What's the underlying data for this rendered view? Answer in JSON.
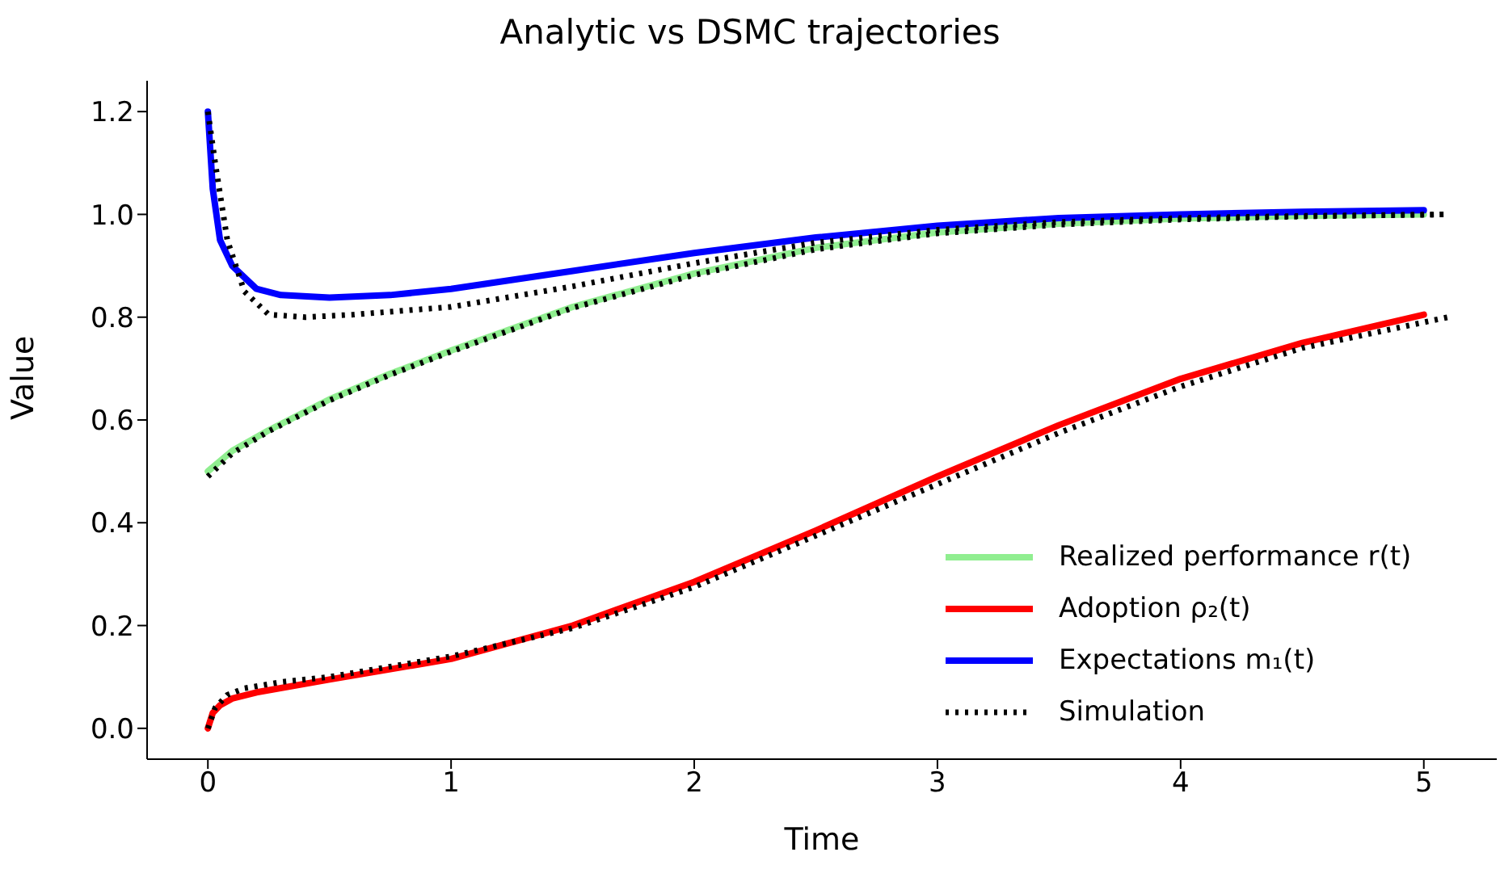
{
  "chart_data": {
    "type": "line",
    "title": "Analytic vs DSMC trajectories",
    "xlabel": "Time",
    "ylabel": "Value",
    "xlim": [
      -0.25,
      5.3
    ],
    "xticks": [
      0,
      1,
      2,
      3,
      4,
      5
    ],
    "ylim": [
      -0.06,
      1.26
    ],
    "yticks": [
      {
        "value": 0,
        "label": "0.0"
      },
      {
        "value": 0.2,
        "label": "0.2"
      },
      {
        "value": 0.4,
        "label": "0.4"
      },
      {
        "value": 0.6,
        "label": "0.6"
      },
      {
        "value": 0.8,
        "label": "0.8"
      },
      {
        "value": 1,
        "label": "1.0"
      },
      {
        "value": 1.2,
        "label": "1.2"
      }
    ],
    "grid": false,
    "legend": "bottom right",
    "marker": "none",
    "series": [
      {
        "name": "Realized performance r(t)",
        "color": "#90ee90",
        "line_style": "solid",
        "x": [
          0,
          0.1,
          0.25,
          0.5,
          0.75,
          1,
          1.5,
          2,
          2.5,
          3,
          3.5,
          4,
          4.5,
          5
        ],
        "values": [
          0.5,
          0.54,
          0.58,
          0.64,
          0.69,
          0.735,
          0.82,
          0.885,
          0.935,
          0.965,
          0.982,
          0.992,
          0.997,
          1.0
        ]
      },
      {
        "name": "Adoption ρ₂(t)",
        "color": "#ff0000",
        "line_style": "solid",
        "x": [
          0,
          0.02,
          0.05,
          0.1,
          0.2,
          0.5,
          1,
          1.5,
          2,
          2.5,
          3,
          3.5,
          4,
          4.5,
          5
        ],
        "values": [
          0,
          0.03,
          0.045,
          0.058,
          0.07,
          0.095,
          0.135,
          0.2,
          0.285,
          0.385,
          0.49,
          0.59,
          0.68,
          0.75,
          0.805
        ]
      },
      {
        "name": "Expectations m₁(t)",
        "color": "#0000ff",
        "line_style": "solid",
        "x": [
          0,
          0.02,
          0.05,
          0.1,
          0.2,
          0.3,
          0.5,
          0.75,
          1,
          1.5,
          2,
          2.5,
          3,
          3.5,
          4,
          4.5,
          5
        ],
        "values": [
          1.2,
          1.05,
          0.95,
          0.9,
          0.855,
          0.843,
          0.838,
          0.843,
          0.855,
          0.89,
          0.925,
          0.955,
          0.978,
          0.993,
          1.0,
          1.005,
          1.008
        ]
      },
      {
        "name": "Simulation",
        "color": "#000000",
        "line_style": "dotted",
        "x": [
          0,
          0.03,
          0.08,
          0.15,
          0.25,
          0.4,
          0.6,
          1,
          1.5,
          2,
          2.5,
          3,
          3.5,
          4,
          4.5,
          5.1
        ],
        "values": [
          1.2,
          1.1,
          0.95,
          0.85,
          0.805,
          0.8,
          0.805,
          0.82,
          0.86,
          0.905,
          0.945,
          0.97,
          0.985,
          0.993,
          0.997,
          1.0
        ]
      },
      {
        "color": "#000000",
        "line_style": "dotted",
        "x": [
          0,
          0.1,
          0.25,
          0.5,
          0.75,
          1,
          1.5,
          2,
          2.5,
          3,
          3.5,
          4,
          4.5,
          5.1
        ],
        "values": [
          0.49,
          0.535,
          0.578,
          0.638,
          0.688,
          0.733,
          0.818,
          0.882,
          0.932,
          0.963,
          0.98,
          0.99,
          0.996,
          1.0
        ]
      },
      {
        "color": "#000000",
        "line_style": "dotted",
        "x": [
          0,
          0.03,
          0.08,
          0.15,
          0.3,
          0.5,
          1,
          1.5,
          2,
          2.5,
          3,
          3.5,
          4,
          4.5,
          5.1
        ],
        "values": [
          0,
          0.04,
          0.065,
          0.078,
          0.09,
          0.1,
          0.14,
          0.195,
          0.275,
          0.375,
          0.475,
          0.575,
          0.665,
          0.74,
          0.8
        ]
      }
    ]
  }
}
